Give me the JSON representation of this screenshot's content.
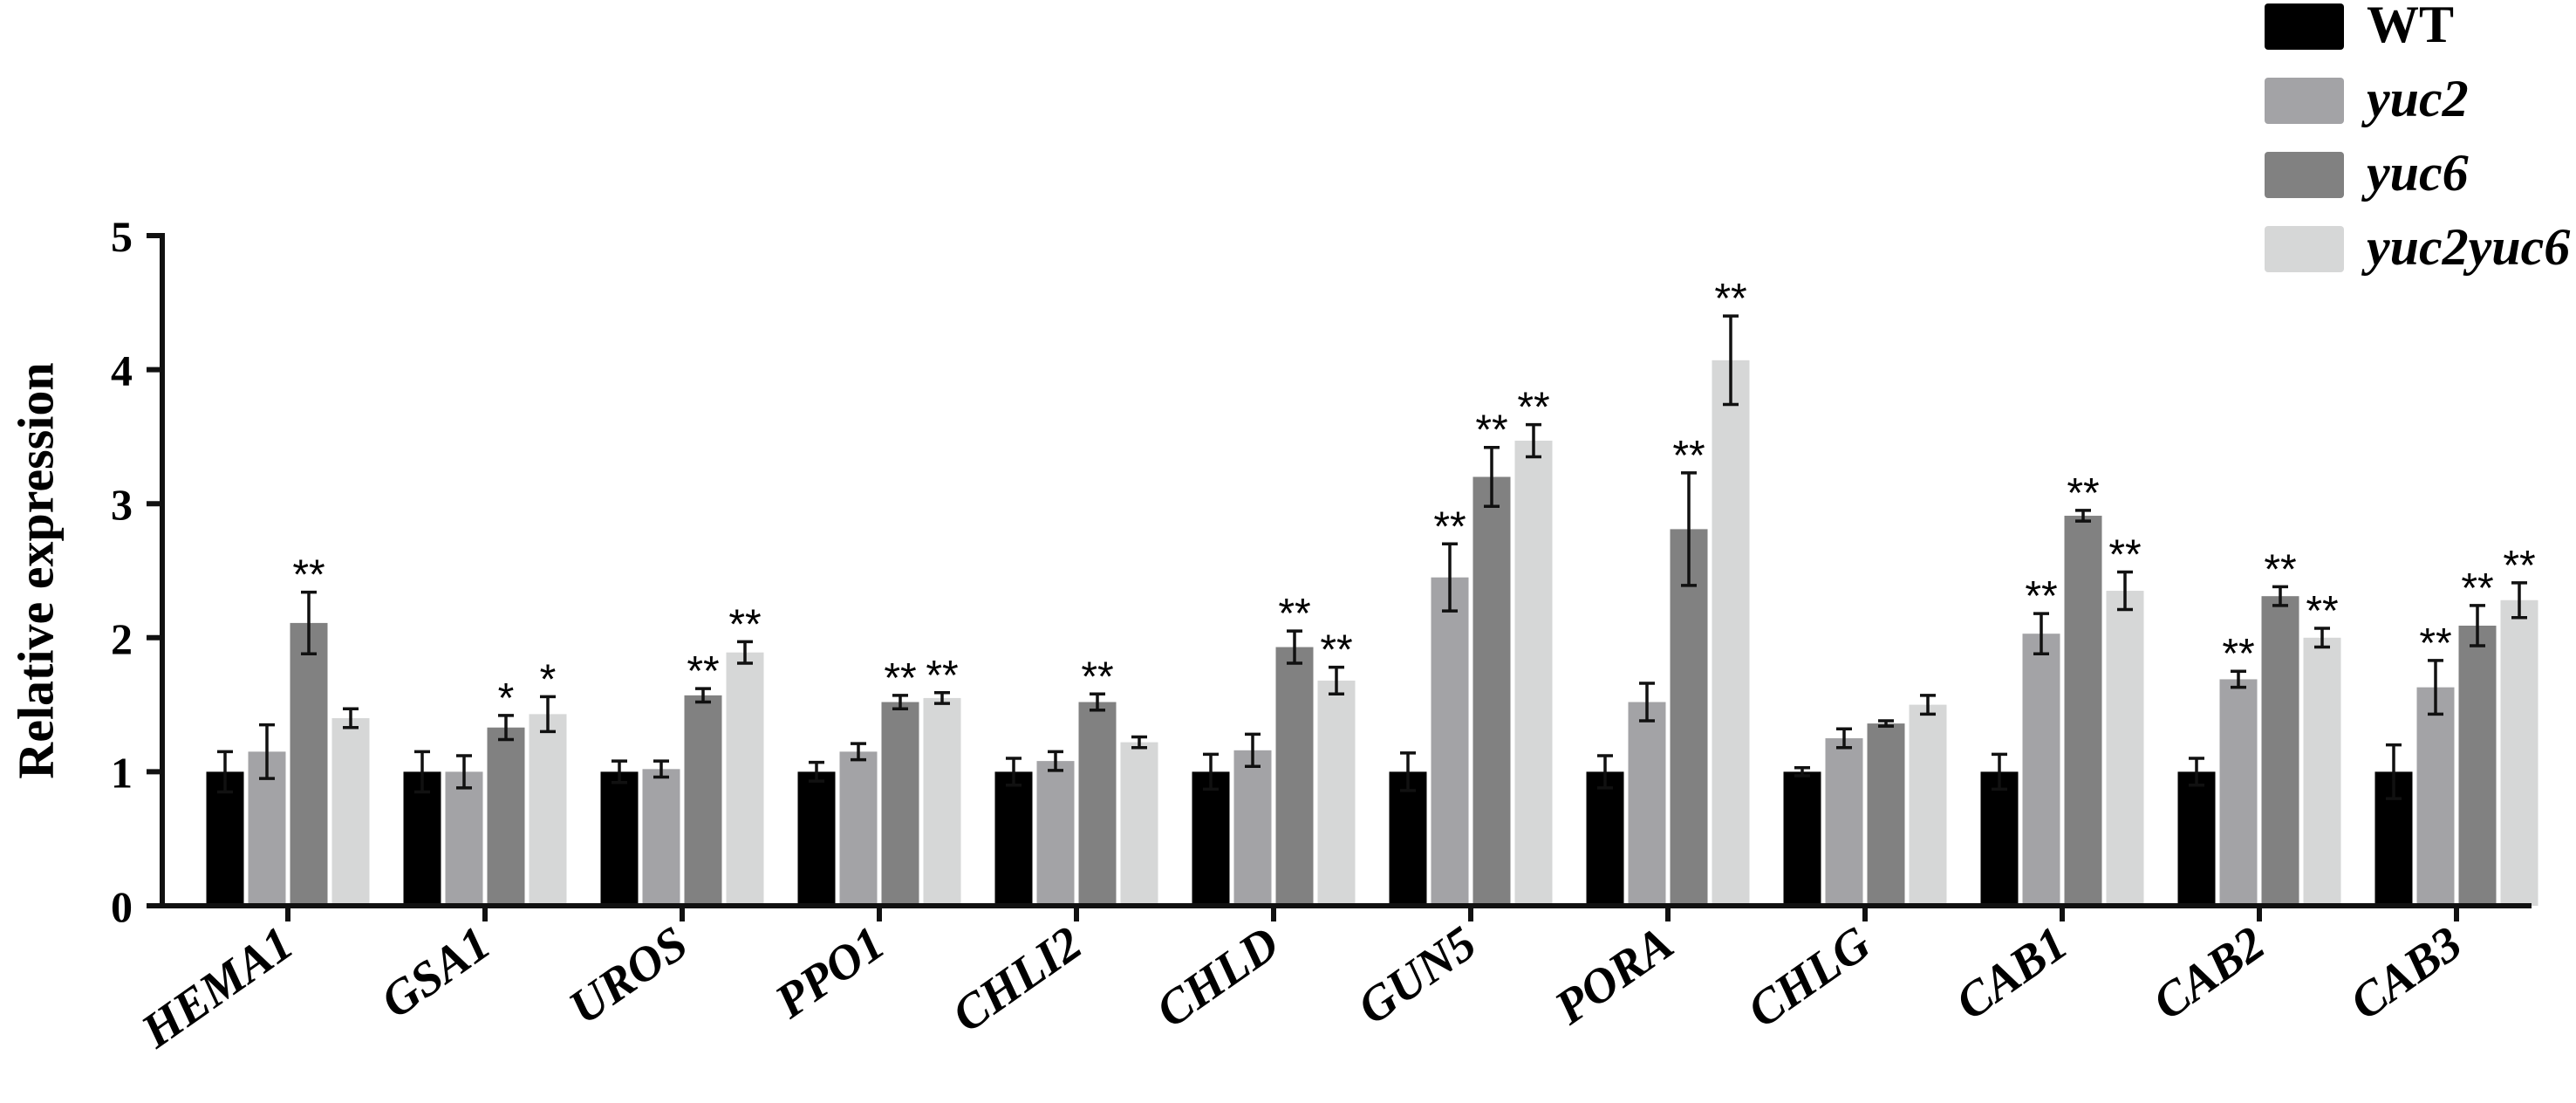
{
  "chart_data": {
    "type": "bar",
    "ylabel": "Relative expression",
    "ylim": [
      0,
      5
    ],
    "yticks": [
      "0",
      "1",
      "2",
      "3",
      "4",
      "5"
    ],
    "grid": false,
    "legend_position": "top-right",
    "categories": [
      "HEMA1",
      "GSA1",
      "UROS",
      "PPO1",
      "CHLI2",
      "CHLD",
      "GUN5",
      "PORA",
      "CHLG",
      "CAB1",
      "CAB2",
      "CAB3"
    ],
    "series": [
      {
        "name": "WT",
        "italic": false,
        "color": "#000000",
        "values": [
          1.0,
          1.0,
          1.0,
          1.0,
          1.0,
          1.0,
          1.0,
          1.0,
          1.0,
          1.0,
          1.0,
          1.0
        ],
        "errors": [
          0.15,
          0.15,
          0.08,
          0.07,
          0.1,
          0.13,
          0.14,
          0.12,
          0.03,
          0.13,
          0.1,
          0.2
        ],
        "significance": [
          "",
          "",
          "",
          "",
          "",
          "",
          "",
          "",
          "",
          "",
          "",
          ""
        ]
      },
      {
        "name": "yuc2",
        "italic": true,
        "color": "#a3a3a6",
        "values": [
          1.15,
          1.0,
          1.02,
          1.15,
          1.08,
          1.16,
          2.45,
          1.52,
          1.25,
          2.03,
          1.69,
          1.63
        ],
        "errors": [
          0.2,
          0.12,
          0.06,
          0.06,
          0.07,
          0.12,
          0.25,
          0.14,
          0.07,
          0.15,
          0.06,
          0.2
        ],
        "significance": [
          "",
          "",
          "",
          "",
          "",
          "",
          "**",
          "",
          "",
          "**",
          "**",
          "**"
        ]
      },
      {
        "name": "yuc6",
        "italic": true,
        "color": "#818181",
        "values": [
          2.11,
          1.33,
          1.57,
          1.52,
          1.52,
          1.93,
          3.2,
          2.81,
          1.36,
          2.91,
          2.31,
          2.09
        ],
        "errors": [
          0.23,
          0.09,
          0.05,
          0.05,
          0.06,
          0.12,
          0.22,
          0.42,
          0.02,
          0.04,
          0.07,
          0.15
        ],
        "significance": [
          "**",
          "*",
          "**",
          "**",
          "**",
          "**",
          "**",
          "**",
          "",
          "**",
          "**",
          "**"
        ]
      },
      {
        "name": "yuc2yuc6",
        "italic": true,
        "color": "#d6d7d7",
        "values": [
          1.4,
          1.43,
          1.89,
          1.55,
          1.22,
          1.68,
          3.47,
          4.07,
          1.5,
          2.35,
          2.0,
          2.28
        ],
        "errors": [
          0.07,
          0.13,
          0.08,
          0.04,
          0.04,
          0.1,
          0.12,
          0.33,
          0.07,
          0.14,
          0.07,
          0.13
        ],
        "significance": [
          "",
          "*",
          "**",
          "**",
          "",
          "**",
          "**",
          "**",
          "",
          "**",
          "**",
          "**"
        ]
      }
    ]
  }
}
